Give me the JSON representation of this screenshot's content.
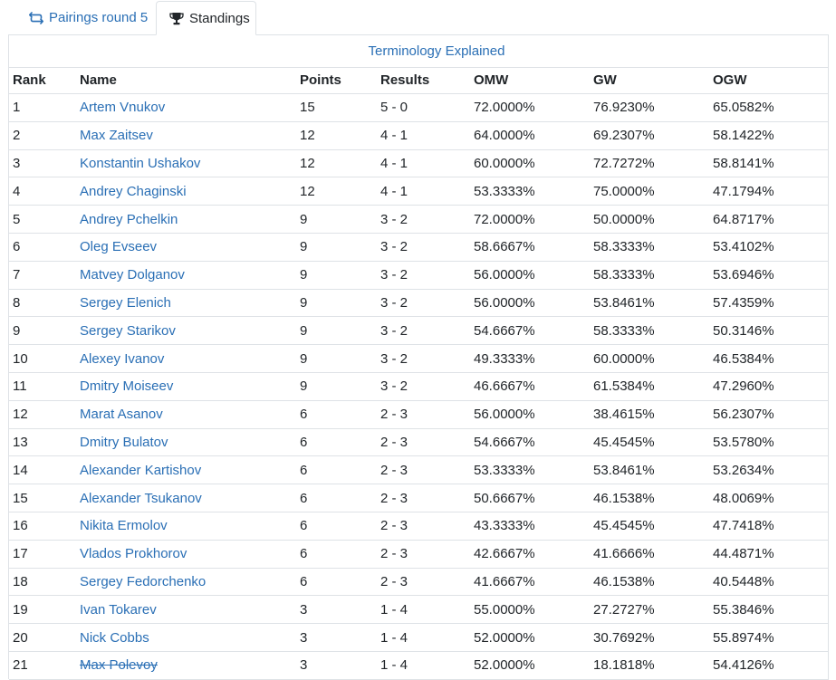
{
  "tabs": [
    {
      "label": "Pairings round 5",
      "icon": "repeat-icon",
      "active": false
    },
    {
      "label": "Standings",
      "icon": "trophy-icon",
      "active": true
    }
  ],
  "colors": {
    "link": "#2a6fb5",
    "border": "#dee2e6",
    "text": "#212529"
  },
  "terminology_link": "Terminology Explained",
  "columns": [
    "Rank",
    "Name",
    "Points",
    "Results",
    "OMW",
    "GW",
    "OGW"
  ],
  "rows": [
    {
      "rank": "1",
      "name": "Artem Vnukov",
      "points": "15",
      "results": "5 - 0",
      "omw": "72.0000%",
      "gw": "76.9230%",
      "ogw": "65.0582%",
      "dropped": false
    },
    {
      "rank": "2",
      "name": "Max Zaitsev",
      "points": "12",
      "results": "4 - 1",
      "omw": "64.0000%",
      "gw": "69.2307%",
      "ogw": "58.1422%",
      "dropped": false
    },
    {
      "rank": "3",
      "name": "Konstantin Ushakov",
      "points": "12",
      "results": "4 - 1",
      "omw": "60.0000%",
      "gw": "72.7272%",
      "ogw": "58.8141%",
      "dropped": false
    },
    {
      "rank": "4",
      "name": "Andrey Chaginski",
      "points": "12",
      "results": "4 - 1",
      "omw": "53.3333%",
      "gw": "75.0000%",
      "ogw": "47.1794%",
      "dropped": false
    },
    {
      "rank": "5",
      "name": "Andrey Pchelkin",
      "points": "9",
      "results": "3 - 2",
      "omw": "72.0000%",
      "gw": "50.0000%",
      "ogw": "64.8717%",
      "dropped": false
    },
    {
      "rank": "6",
      "name": "Oleg Evseev",
      "points": "9",
      "results": "3 - 2",
      "omw": "58.6667%",
      "gw": "58.3333%",
      "ogw": "53.4102%",
      "dropped": false
    },
    {
      "rank": "7",
      "name": "Matvey Dolganov",
      "points": "9",
      "results": "3 - 2",
      "omw": "56.0000%",
      "gw": "58.3333%",
      "ogw": "53.6946%",
      "dropped": false
    },
    {
      "rank": "8",
      "name": "Sergey Elenich",
      "points": "9",
      "results": "3 - 2",
      "omw": "56.0000%",
      "gw": "53.8461%",
      "ogw": "57.4359%",
      "dropped": false
    },
    {
      "rank": "9",
      "name": "Sergey Starikov",
      "points": "9",
      "results": "3 - 2",
      "omw": "54.6667%",
      "gw": "58.3333%",
      "ogw": "50.3146%",
      "dropped": false
    },
    {
      "rank": "10",
      "name": "Alexey Ivanov",
      "points": "9",
      "results": "3 - 2",
      "omw": "49.3333%",
      "gw": "60.0000%",
      "ogw": "46.5384%",
      "dropped": false
    },
    {
      "rank": "11",
      "name": "Dmitry Moiseev",
      "points": "9",
      "results": "3 - 2",
      "omw": "46.6667%",
      "gw": "61.5384%",
      "ogw": "47.2960%",
      "dropped": false
    },
    {
      "rank": "12",
      "name": "Marat Asanov",
      "points": "6",
      "results": "2 - 3",
      "omw": "56.0000%",
      "gw": "38.4615%",
      "ogw": "56.2307%",
      "dropped": false
    },
    {
      "rank": "13",
      "name": "Dmitry Bulatov",
      "points": "6",
      "results": "2 - 3",
      "omw": "54.6667%",
      "gw": "45.4545%",
      "ogw": "53.5780%",
      "dropped": false
    },
    {
      "rank": "14",
      "name": "Alexander Kartishov",
      "points": "6",
      "results": "2 - 3",
      "omw": "53.3333%",
      "gw": "53.8461%",
      "ogw": "53.2634%",
      "dropped": false
    },
    {
      "rank": "15",
      "name": "Alexander Tsukanov",
      "points": "6",
      "results": "2 - 3",
      "omw": "50.6667%",
      "gw": "46.1538%",
      "ogw": "48.0069%",
      "dropped": false
    },
    {
      "rank": "16",
      "name": "Nikita Ermolov",
      "points": "6",
      "results": "2 - 3",
      "omw": "43.3333%",
      "gw": "45.4545%",
      "ogw": "47.7418%",
      "dropped": false
    },
    {
      "rank": "17",
      "name": "Vlados Prokhorov",
      "points": "6",
      "results": "2 - 3",
      "omw": "42.6667%",
      "gw": "41.6666%",
      "ogw": "44.4871%",
      "dropped": false
    },
    {
      "rank": "18",
      "name": "Sergey Fedorchenko",
      "points": "6",
      "results": "2 - 3",
      "omw": "41.6667%",
      "gw": "46.1538%",
      "ogw": "40.5448%",
      "dropped": false
    },
    {
      "rank": "19",
      "name": "Ivan Tokarev",
      "points": "3",
      "results": "1 - 4",
      "omw": "55.0000%",
      "gw": "27.2727%",
      "ogw": "55.3846%",
      "dropped": false
    },
    {
      "rank": "20",
      "name": "Nick Cobbs",
      "points": "3",
      "results": "1 - 4",
      "omw": "52.0000%",
      "gw": "30.7692%",
      "ogw": "55.8974%",
      "dropped": false
    },
    {
      "rank": "21",
      "name": "Max Polevoy",
      "points": "3",
      "results": "1 - 4",
      "omw": "52.0000%",
      "gw": "18.1818%",
      "ogw": "54.4126%",
      "dropped": true
    }
  ]
}
